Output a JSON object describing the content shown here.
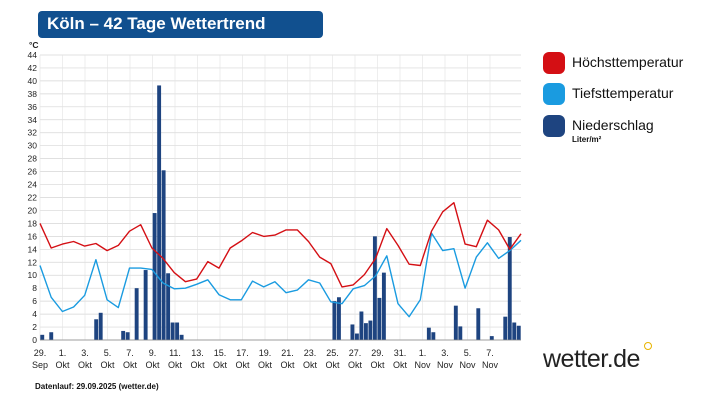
{
  "title": "Köln – 42 Tage Wettertrend",
  "legend": {
    "items": [
      {
        "label": "Höchsttemperatur",
        "color": "#d40f14"
      },
      {
        "label": "Tiefsttemperatur",
        "color": "#1a9be0"
      },
      {
        "label": "Niederschlag",
        "color": "#1e4480"
      }
    ],
    "precip_unit": "Liter/m²"
  },
  "brand": "wetter.de",
  "footer": "Datenlauf: 29.09.2025 (wetter.de)",
  "chart_data": {
    "type": "line+bar",
    "y_unit": "°C",
    "ylim": [
      0,
      44
    ],
    "y_ticks": [
      0,
      2,
      4,
      6,
      8,
      10,
      12,
      14,
      16,
      18,
      20,
      22,
      24,
      26,
      28,
      30,
      32,
      34,
      36,
      38,
      40,
      42,
      44
    ],
    "grid": true,
    "x_ticks": [
      {
        "day": "29.",
        "month": "Sep"
      },
      {
        "day": "1.",
        "month": "Okt"
      },
      {
        "day": "3.",
        "month": "Okt"
      },
      {
        "day": "5.",
        "month": "Okt"
      },
      {
        "day": "7.",
        "month": "Okt"
      },
      {
        "day": "9.",
        "month": "Okt"
      },
      {
        "day": "11.",
        "month": "Okt"
      },
      {
        "day": "13.",
        "month": "Okt"
      },
      {
        "day": "15.",
        "month": "Okt"
      },
      {
        "day": "17.",
        "month": "Okt"
      },
      {
        "day": "19.",
        "month": "Okt"
      },
      {
        "day": "21.",
        "month": "Okt"
      },
      {
        "day": "23.",
        "month": "Okt"
      },
      {
        "day": "25.",
        "month": "Okt"
      },
      {
        "day": "27.",
        "month": "Okt"
      },
      {
        "day": "29.",
        "month": "Okt"
      },
      {
        "day": "31.",
        "month": "Okt"
      },
      {
        "day": "1.",
        "month": "Nov"
      },
      {
        "day": "3.",
        "month": "Nov"
      },
      {
        "day": "5.",
        "month": "Nov"
      },
      {
        "day": "7.",
        "month": "Nov"
      }
    ],
    "series": [
      {
        "name": "Höchsttemperatur",
        "type": "line",
        "color": "#d40f14",
        "values": [
          18,
          14.2,
          14.8,
          15.2,
          14.5,
          14.9,
          13.8,
          14.6,
          16.8,
          17.8,
          14.2,
          12.6,
          10.4,
          9.0,
          9.4,
          12.1,
          11.1,
          14.2,
          15.3,
          16.6,
          16.0,
          16.2,
          17.0,
          17.0,
          15.2,
          12.8,
          11.8,
          8.2,
          8.5,
          10.1,
          12.6,
          17.2,
          14.6,
          11.7,
          11.5,
          16.8,
          19.8,
          21.2,
          14.8,
          14.4,
          18.5,
          17.0,
          14.0,
          16.4
        ]
      },
      {
        "name": "Tiefsttemperatur",
        "type": "line",
        "color": "#1a9be0",
        "values": [
          11.5,
          6.6,
          4.4,
          5.1,
          6.9,
          12.4,
          6.2,
          5.0,
          11.1,
          11.1,
          10.9,
          8.8,
          7.9,
          8.0,
          8.6,
          9.3,
          7.0,
          6.2,
          6.2,
          9.1,
          8.2,
          9.0,
          7.3,
          7.7,
          9.3,
          8.8,
          5.9,
          5.6,
          7.9,
          8.4,
          9.9,
          13.0,
          5.6,
          3.6,
          6.2,
          16.5,
          13.8,
          14.1,
          8.0,
          12.8,
          15.0,
          12.6,
          13.8,
          15.4
        ]
      },
      {
        "name": "Niederschlag",
        "type": "bar",
        "color": "#1e4480",
        "values": [
          0.8,
          0,
          1.2,
          0,
          0,
          0,
          0,
          0,
          0,
          0,
          0,
          0,
          3.2,
          4.2,
          0,
          0,
          0,
          0,
          1.4,
          1.2,
          0,
          8.0,
          0,
          10.8,
          0,
          19.6,
          39.3,
          26.2,
          10.3,
          2.7,
          2.7,
          0.8,
          0,
          0,
          0,
          0,
          0,
          0,
          0,
          0,
          0,
          0,
          0,
          0,
          0,
          0,
          0,
          0,
          0,
          0,
          0,
          0,
          0,
          0,
          0,
          0,
          0,
          0,
          0,
          0,
          0,
          0,
          0,
          0,
          0,
          6.0,
          6.6,
          0,
          0,
          2.4,
          1.0,
          4.4,
          2.6,
          3.0,
          16.0,
          6.5,
          10.4,
          0,
          0,
          0,
          0,
          0,
          0,
          0,
          0,
          0,
          1.9,
          1.2,
          0,
          0,
          0,
          0,
          5.3,
          2.1,
          0,
          0,
          0,
          4.9,
          0,
          0,
          0.6,
          0,
          0,
          3.6,
          15.9,
          2.7,
          2.2
        ]
      }
    ]
  }
}
